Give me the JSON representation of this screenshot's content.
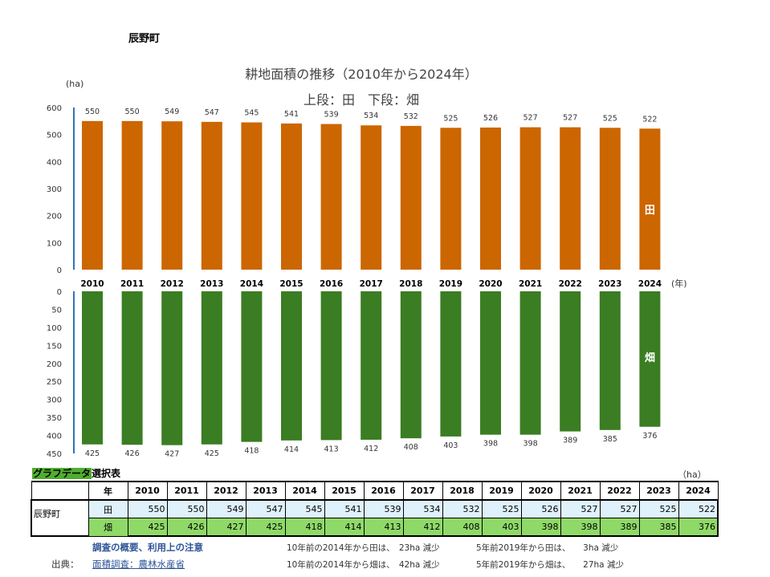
{
  "town": "辰野町",
  "chart_data": {
    "type": "bar",
    "title": "耕地面積の推移（2010年から2024年）",
    "subtitle": "上段：田　下段：畑",
    "yunit": "(ha)",
    "xunit": "(年)",
    "categories": [
      "2010",
      "2011",
      "2012",
      "2013",
      "2014",
      "2015",
      "2016",
      "2017",
      "2018",
      "2019",
      "2020",
      "2021",
      "2022",
      "2023",
      "2024"
    ],
    "series": [
      {
        "name": "田",
        "color": "#cc6600",
        "values": [
          550,
          550,
          549,
          547,
          545,
          541,
          539,
          534,
          532,
          525,
          526,
          527,
          527,
          525,
          522
        ],
        "ylim": [
          0,
          600
        ],
        "ticks": [
          "0",
          "100",
          "200",
          "300",
          "400",
          "500",
          "600"
        ]
      },
      {
        "name": "畑",
        "color": "#3a7d22",
        "values": [
          425,
          426,
          427,
          425,
          418,
          414,
          413,
          412,
          408,
          403,
          398,
          398,
          389,
          385,
          376
        ],
        "ylim": [
          0,
          450
        ],
        "inverted": true,
        "ticks": [
          "0",
          "50",
          "100",
          "150",
          "200",
          "250",
          "300",
          "350",
          "400",
          "450"
        ]
      }
    ]
  },
  "table": {
    "selector_label_hl": "グラフデータ",
    "selector_label_rest": "選択表",
    "unit": "（ha）",
    "year_header": "年",
    "row_town": "辰野町",
    "row_ta": "田",
    "row_hata": "畑"
  },
  "footer": {
    "notes_link": "調査の概要、利用上の注意",
    "source_label": "出典：",
    "source_link": "面積調査：農林水産省",
    "note1": "10年前の2014年から田は、　23ha 減少",
    "note2": "5年前2019年から田は、　　3ha 減少",
    "note3": "10年前の2014年から畑は、　42ha 減少",
    "note4": "5年前2019年から畑は、　　27ha 減少"
  }
}
